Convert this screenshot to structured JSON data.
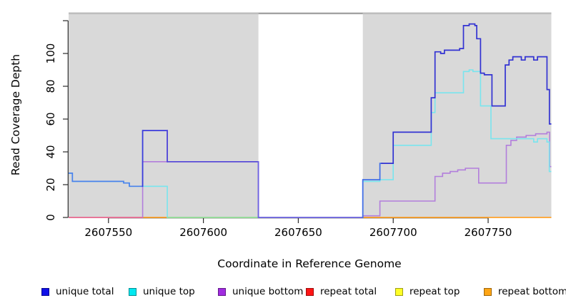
{
  "chart_data": {
    "type": "line",
    "subtype": "step-coverage",
    "title": "",
    "xlabel": "Coordinate in Reference Genome",
    "ylabel": "Read Coverage Depth",
    "x_range": [
      2607529,
      2607783
    ],
    "y_range": [
      0,
      120
    ],
    "x_ticks": [
      2607550,
      2607600,
      2607650,
      2607700,
      2607750
    ],
    "y_ticks_labeled": [
      0,
      20,
      40,
      60,
      80,
      100
    ],
    "y_ticks_unlabeled": [
      120
    ],
    "grid": false,
    "plot_background": "#d9d9d9",
    "gap_region": {
      "from": 2607629,
      "to": 2607684,
      "fill": "#ffffff"
    },
    "top_border": {
      "color_over_gap": "#8c8c8c",
      "color_over_plot": "#b5b5b5"
    },
    "series": [
      {
        "name": "repeat total",
        "color": "#ff2020",
        "width": 1.2,
        "points": [
          [
            2607529,
            0
          ]
        ]
      },
      {
        "name": "repeat top",
        "color": "#ffff30",
        "width": 1.2,
        "points": [
          [
            2607529,
            0
          ]
        ]
      },
      {
        "name": "repeat bottom",
        "color": "#ffa126",
        "width": 1.5,
        "points": [
          [
            2607529,
            0
          ]
        ]
      },
      {
        "name": "unique bottom",
        "color": "#b27edc",
        "width": 1.6,
        "points": [
          [
            2607529,
            0
          ],
          [
            2607568,
            34
          ],
          [
            2607629,
            0
          ],
          [
            2607684,
            1
          ],
          [
            2607693,
            10
          ],
          [
            2607722,
            25
          ],
          [
            2607726,
            27
          ],
          [
            2607730,
            28
          ],
          [
            2607734,
            29
          ],
          [
            2607738,
            30
          ],
          [
            2607745,
            21
          ],
          [
            2607759.6,
            44
          ],
          [
            2607762,
            47
          ],
          [
            2607765,
            49
          ],
          [
            2607770,
            50
          ],
          [
            2607775,
            51
          ],
          [
            2607781,
            52
          ],
          [
            2607782.4,
            31
          ]
        ]
      },
      {
        "name": "unique top",
        "color": "#79e5ee",
        "width": 1.6,
        "points": [
          [
            2607529,
            27
          ],
          [
            2607531,
            22
          ],
          [
            2607558,
            21
          ],
          [
            2607561,
            19
          ],
          [
            2607581,
            0
          ],
          [
            2607684,
            22
          ],
          [
            2607693,
            23
          ],
          [
            2607700,
            44
          ],
          [
            2607720,
            64
          ],
          [
            2607722,
            76
          ],
          [
            2607737,
            89
          ],
          [
            2607740,
            90
          ],
          [
            2607742,
            89
          ],
          [
            2607746,
            68
          ],
          [
            2607751.5,
            48
          ],
          [
            2607774,
            46
          ],
          [
            2607776,
            48
          ],
          [
            2607781,
            46
          ],
          [
            2607782.2,
            28
          ]
        ]
      },
      {
        "name": "baseline blend pink",
        "color": "#ed6a97",
        "width": 1.5,
        "overlay": true,
        "points": [
          [
            2607529,
            0
          ]
        ],
        "to": 2607568
      },
      {
        "name": "baseline blend green",
        "color": "#8fe39a",
        "width": 1.5,
        "overlay": true,
        "points": [
          [
            2607581,
            0
          ]
        ],
        "to": 2607629
      },
      {
        "name": "unique total",
        "color": "#3232d2",
        "width": 1.7,
        "color_spans": [
          {
            "from": 2607529,
            "to": 2607568,
            "color": "#4b82ec"
          },
          {
            "from": 2607568,
            "to": 2607581,
            "color": "#3c3cdc"
          },
          {
            "from": 2607581,
            "to": 2607629,
            "color": "#5246d8"
          },
          {
            "from": 2607629,
            "to": 2607684,
            "color": "#6f62e2"
          },
          {
            "from": 2607684,
            "to": 2607694,
            "color": "#3f6ee8"
          },
          {
            "from": 2607694,
            "to": 2607784,
            "color": "#3232d2"
          }
        ],
        "points": [
          [
            2607529,
            27
          ],
          [
            2607531,
            22
          ],
          [
            2607558,
            21
          ],
          [
            2607561,
            19
          ],
          [
            2607568,
            53
          ],
          [
            2607581,
            34
          ],
          [
            2607629,
            0
          ],
          [
            2607684,
            23
          ],
          [
            2607693,
            33
          ],
          [
            2607700,
            52
          ],
          [
            2607720,
            73
          ],
          [
            2607722,
            101
          ],
          [
            2607725,
            100
          ],
          [
            2607727,
            102
          ],
          [
            2607735,
            103
          ],
          [
            2607737,
            117
          ],
          [
            2607740,
            118
          ],
          [
            2607743,
            117
          ],
          [
            2607744,
            109
          ],
          [
            2607746,
            88
          ],
          [
            2607748,
            87
          ],
          [
            2607752,
            68
          ],
          [
            2607759,
            93
          ],
          [
            2607761,
            96
          ],
          [
            2607763,
            98
          ],
          [
            2607767.5,
            96
          ],
          [
            2607769.5,
            98
          ],
          [
            2607774,
            96
          ],
          [
            2607776,
            98
          ],
          [
            2607781,
            78
          ],
          [
            2607782.3,
            57
          ]
        ]
      }
    ]
  },
  "axes": {
    "x_title": "Coordinate in Reference Genome",
    "y_title": "Read Coverage Depth"
  },
  "legend": {
    "items": [
      {
        "label": "unique total",
        "color": "#0f0fe8"
      },
      {
        "label": "unique top",
        "color": "#00e8f0"
      },
      {
        "label": "unique bottom",
        "color": "#a12be0"
      },
      {
        "label": "repeat total",
        "color": "#ff1414"
      },
      {
        "label": "repeat top",
        "color": "#ffff26"
      },
      {
        "label": "repeat bottom",
        "color": "#ffa514"
      }
    ]
  }
}
